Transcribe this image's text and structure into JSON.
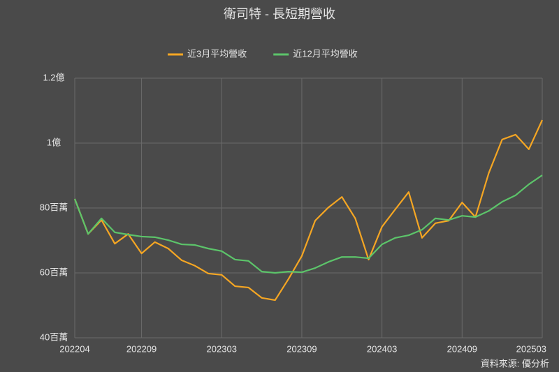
{
  "chart_data": {
    "type": "line",
    "title": "衛司特 - 長短期營收",
    "categories": [
      "202204",
      null,
      null,
      null,
      null,
      "202209",
      null,
      null,
      null,
      null,
      null,
      "202303",
      null,
      null,
      null,
      null,
      null,
      "202309",
      null,
      null,
      null,
      null,
      null,
      "202403",
      null,
      null,
      null,
      null,
      null,
      "202409",
      null,
      null,
      null,
      null,
      null,
      "202503"
    ],
    "series": [
      {
        "name": "近3月平均營收",
        "color": "#f5a623",
        "values": [
          82.8,
          72.0,
          76.3,
          69.0,
          72.0,
          66.0,
          69.5,
          67.5,
          63.9,
          62.2,
          59.8,
          59.4,
          55.9,
          55.5,
          52.3,
          51.6,
          58.1,
          65.2,
          76.1,
          80.2,
          83.4,
          76.8,
          64.1,
          74.2,
          79.6,
          84.9,
          70.8,
          75.3,
          76.1,
          81.7,
          77.2,
          90.8,
          101.1,
          102.6,
          98.1,
          107.1
        ]
      },
      {
        "name": "近12月平均營收",
        "color": "#5cc46a",
        "values": [
          82.8,
          72.0,
          76.8,
          72.5,
          71.8,
          71.2,
          71.0,
          70.1,
          68.8,
          68.6,
          67.5,
          66.7,
          64.1,
          63.7,
          60.4,
          60.0,
          60.4,
          60.2,
          61.5,
          63.4,
          64.9,
          64.9,
          64.5,
          68.8,
          70.8,
          71.6,
          73.3,
          76.8,
          76.3,
          77.6,
          77.2,
          79.1,
          81.9,
          83.9,
          87.3,
          90.1
        ]
      }
    ],
    "ylim": [
      40,
      120
    ],
    "yticks": [
      {
        "value": 40,
        "label": "40百萬"
      },
      {
        "value": 60,
        "label": "60百萬"
      },
      {
        "value": 80,
        "label": "80百萬"
      },
      {
        "value": 100,
        "label": "1億"
      },
      {
        "value": 120,
        "label": "1.2億"
      }
    ],
    "grid": true,
    "legend": "top",
    "source": "資料來源: 優分析"
  }
}
